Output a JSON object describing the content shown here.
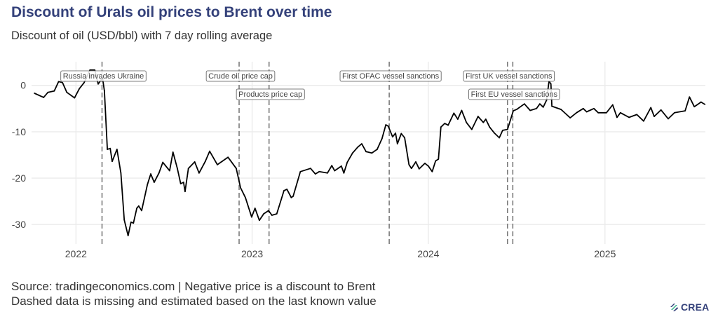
{
  "header": {
    "title": "Discount of Urals oil prices to Brent over time",
    "subtitle": "Discount of oil (USD/bbl) with 7 day rolling average"
  },
  "footer": {
    "source": "Source: tradingeconomics.com | Negative price is a discount to Brent",
    "note": "Dashed data is missing and estimated based on the last known value",
    "logo_text": "CREA"
  },
  "colors": {
    "title": "#34417a",
    "line": "#000000",
    "event_line": "#7a7a7a",
    "grid": "#ebebeb",
    "logo_green": "#35b38a",
    "logo_navy": "#34417a"
  },
  "chart_data": {
    "type": "line",
    "title": "Discount of Urals oil prices to Brent over time",
    "xlabel": "",
    "ylabel": "",
    "xlim": [
      "2021-10-01",
      "2025-07-28"
    ],
    "ylim": [
      -34.2,
      5.1
    ],
    "grid": true,
    "legend": "none",
    "x_ticks": [
      {
        "date": "2022-01-01",
        "label": "2022"
      },
      {
        "date": "2023-01-01",
        "label": "2023"
      },
      {
        "date": "2024-01-01",
        "label": "2024"
      },
      {
        "date": "2025-01-01",
        "label": "2025"
      }
    ],
    "y_ticks": [
      {
        "value": 0,
        "label": "0"
      },
      {
        "value": -10,
        "label": "-10"
      },
      {
        "value": -20,
        "label": "-20"
      },
      {
        "value": -30,
        "label": "-30"
      }
    ],
    "events": [
      {
        "date": "2022-02-24",
        "label": "Russia invades Ukraine",
        "row": 1
      },
      {
        "date": "2022-12-05",
        "label": "Crude oil price cap",
        "row": 1
      },
      {
        "date": "2023-02-05",
        "label": "Products price cap",
        "row": 2
      },
      {
        "date": "2023-10-12",
        "label": "First OFAC vessel sanctions",
        "row": 1
      },
      {
        "date": "2024-06-13",
        "label": "First UK vessel sanctions",
        "row": 1
      },
      {
        "date": "2024-06-24",
        "label": "First EU vessel sanctions",
        "row": 2
      }
    ],
    "series": [
      {
        "x": [
          "2021-10-07",
          "2021-10-26",
          "2021-11-04",
          "2021-11-17",
          "2021-11-26",
          "2021-12-04",
          "2021-12-13",
          "2021-12-29",
          "2022-01-08",
          "2022-01-18",
          "2022-01-30",
          "2022-02-09",
          "2022-02-16",
          "2022-02-25",
          "2022-03-01",
          "2022-03-07",
          "2022-03-13",
          "2022-03-17",
          "2022-03-27",
          "2022-04-04",
          "2022-04-11",
          "2022-04-19",
          "2022-04-25",
          "2022-04-30",
          "2022-05-07",
          "2022-05-11",
          "2022-05-17",
          "2022-05-29",
          "2022-06-05",
          "2022-06-12",
          "2022-06-22",
          "2022-06-30",
          "2022-07-14",
          "2022-07-21",
          "2022-07-30",
          "2022-08-06",
          "2022-08-12",
          "2022-08-15",
          "2022-08-22",
          "2022-09-04",
          "2022-09-13",
          "2022-09-26",
          "2022-10-05",
          "2022-10-21",
          "2022-11-12",
          "2022-11-29",
          "2022-12-08",
          "2022-12-18",
          "2022-12-31",
          "2023-01-07",
          "2023-01-16",
          "2023-01-25",
          "2023-02-04",
          "2023-02-11",
          "2023-02-21",
          "2023-03-08",
          "2023-03-14",
          "2023-03-23",
          "2023-03-27",
          "2023-04-11",
          "2023-05-02",
          "2023-05-12",
          "2023-05-20",
          "2023-06-06",
          "2023-06-15",
          "2023-06-21",
          "2023-07-05",
          "2023-07-10",
          "2023-07-17",
          "2023-07-28",
          "2023-08-08",
          "2023-08-16",
          "2023-08-25",
          "2023-09-06",
          "2023-09-17",
          "2023-09-27",
          "2023-10-05",
          "2023-10-10",
          "2023-10-19",
          "2023-10-25",
          "2023-10-29",
          "2023-11-06",
          "2023-11-13",
          "2023-11-22",
          "2023-11-27",
          "2023-12-06",
          "2023-12-13",
          "2023-12-25",
          "2024-01-01",
          "2024-01-09",
          "2024-01-16",
          "2024-01-22",
          "2024-01-27",
          "2024-02-04",
          "2024-02-11",
          "2024-02-23",
          "2024-03-02",
          "2024-03-10",
          "2024-03-20",
          "2024-03-31",
          "2024-04-13",
          "2024-04-24",
          "2024-04-29",
          "2024-05-07",
          "2024-05-17",
          "2024-05-27",
          "2024-06-03",
          "2024-06-13",
          "2024-06-25",
          "2024-07-02",
          "2024-07-18",
          "2024-07-30",
          "2024-08-12",
          "2024-08-19",
          "2024-08-26",
          "2024-09-02",
          "2024-09-07",
          "2024-09-11",
          "2024-09-13",
          "2024-10-02",
          "2024-10-21",
          "2024-11-03",
          "2024-11-17",
          "2024-11-24",
          "2024-12-09",
          "2024-12-18",
          "2025-01-04",
          "2025-01-17",
          "2025-01-26",
          "2025-02-02",
          "2025-02-20",
          "2025-03-08",
          "2025-03-22",
          "2025-04-06",
          "2025-04-13",
          "2025-04-27",
          "2025-05-12",
          "2025-05-25",
          "2025-06-16",
          "2025-06-25",
          "2025-07-05",
          "2025-07-19",
          "2025-07-27"
        ],
        "y": [
          -1.7,
          -2.6,
          -1.5,
          -1.2,
          0.8,
          0.6,
          -1.5,
          -2.7,
          -0.7,
          0.6,
          3.3,
          3.3,
          0.3,
          1.6,
          -1.2,
          -13.8,
          -13.6,
          -16.4,
          -13.8,
          -18.9,
          -29.0,
          -32.4,
          -29.5,
          -29.7,
          -26.5,
          -26.0,
          -27.0,
          -21.4,
          -19.1,
          -20.9,
          -18.9,
          -16.6,
          -18.4,
          -14.4,
          -17.9,
          -21.2,
          -20.9,
          -22.9,
          -17.9,
          -16.5,
          -18.9,
          -16.4,
          -14.2,
          -17.1,
          -15.5,
          -17.9,
          -22.1,
          -24.2,
          -28.4,
          -26.5,
          -29.1,
          -27.7,
          -27.0,
          -28.0,
          -27.7,
          -22.7,
          -22.4,
          -24.2,
          -23.9,
          -18.6,
          -17.9,
          -19.1,
          -18.6,
          -18.9,
          -17.3,
          -18.4,
          -17.4,
          -18.9,
          -16.6,
          -14.6,
          -13.3,
          -12.6,
          -14.3,
          -14.6,
          -13.8,
          -11.5,
          -8.5,
          -8.8,
          -11.1,
          -10.3,
          -12.6,
          -10.4,
          -11.3,
          -17.1,
          -17.9,
          -16.5,
          -18.0,
          -16.8,
          -17.4,
          -18.6,
          -16.3,
          -15.9,
          -9.0,
          -8.2,
          -8.6,
          -6.0,
          -7.3,
          -5.4,
          -8.0,
          -9.5,
          -6.7,
          -8.0,
          -7.3,
          -9.0,
          -10.3,
          -11.3,
          -9.7,
          -9.5,
          -5.5,
          -5.2,
          -4.0,
          -5.4,
          -5.0,
          -4.0,
          -4.7,
          -3.2,
          0.9,
          0.3,
          -4.5,
          -5.2,
          -7.0,
          -5.9,
          -5.0,
          -5.7,
          -5.0,
          -5.9,
          -5.9,
          -4.2,
          -6.9,
          -5.9,
          -6.9,
          -6.3,
          -7.7,
          -4.8,
          -6.7,
          -5.3,
          -7.2,
          -5.9,
          -5.5,
          -2.5,
          -4.6,
          -3.6,
          -4.1
        ]
      }
    ]
  }
}
